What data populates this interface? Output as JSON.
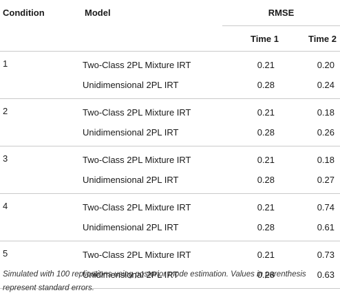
{
  "table": {
    "headers": {
      "condition": "Condition",
      "model": "Model",
      "rmse": "RMSE",
      "time1": "Time 1",
      "time2": "Time 2"
    },
    "rows": [
      {
        "condition": "1",
        "models": [
          {
            "name": "Two-Class 2PL Mixture IRT",
            "time1": "0.21",
            "time2": "0.20"
          },
          {
            "name": "Unidimensional 2PL IRT",
            "time1": "0.28",
            "time2": "0.24"
          }
        ]
      },
      {
        "condition": "2",
        "models": [
          {
            "name": "Two-Class 2PL Mixture IRT",
            "time1": "0.21",
            "time2": "0.18"
          },
          {
            "name": "Unidimensional 2PL IRT",
            "time1": "0.28",
            "time2": "0.26"
          }
        ]
      },
      {
        "condition": "3",
        "models": [
          {
            "name": "Two-Class 2PL Mixture IRT",
            "time1": "0.21",
            "time2": "0.18"
          },
          {
            "name": "Unidimensional 2PL IRT",
            "time1": "0.28",
            "time2": "0.27"
          }
        ]
      },
      {
        "condition": "4",
        "models": [
          {
            "name": "Two-Class 2PL Mixture IRT",
            "time1": "0.21",
            "time2": "0.74"
          },
          {
            "name": "Unidimensional 2PL IRT",
            "time1": "0.28",
            "time2": "0.61"
          }
        ]
      },
      {
        "condition": "5",
        "models": [
          {
            "name": "Two-Class 2PL Mixture IRT",
            "time1": "0.21",
            "time2": "0.73"
          },
          {
            "name": "Unidimensional 2PL IRT",
            "time1": "0.28",
            "time2": "0.63"
          }
        ]
      }
    ],
    "footnote": "Simulated with 100 replications using posterior mode estimation. Values in parenthesis represent standard errors."
  }
}
